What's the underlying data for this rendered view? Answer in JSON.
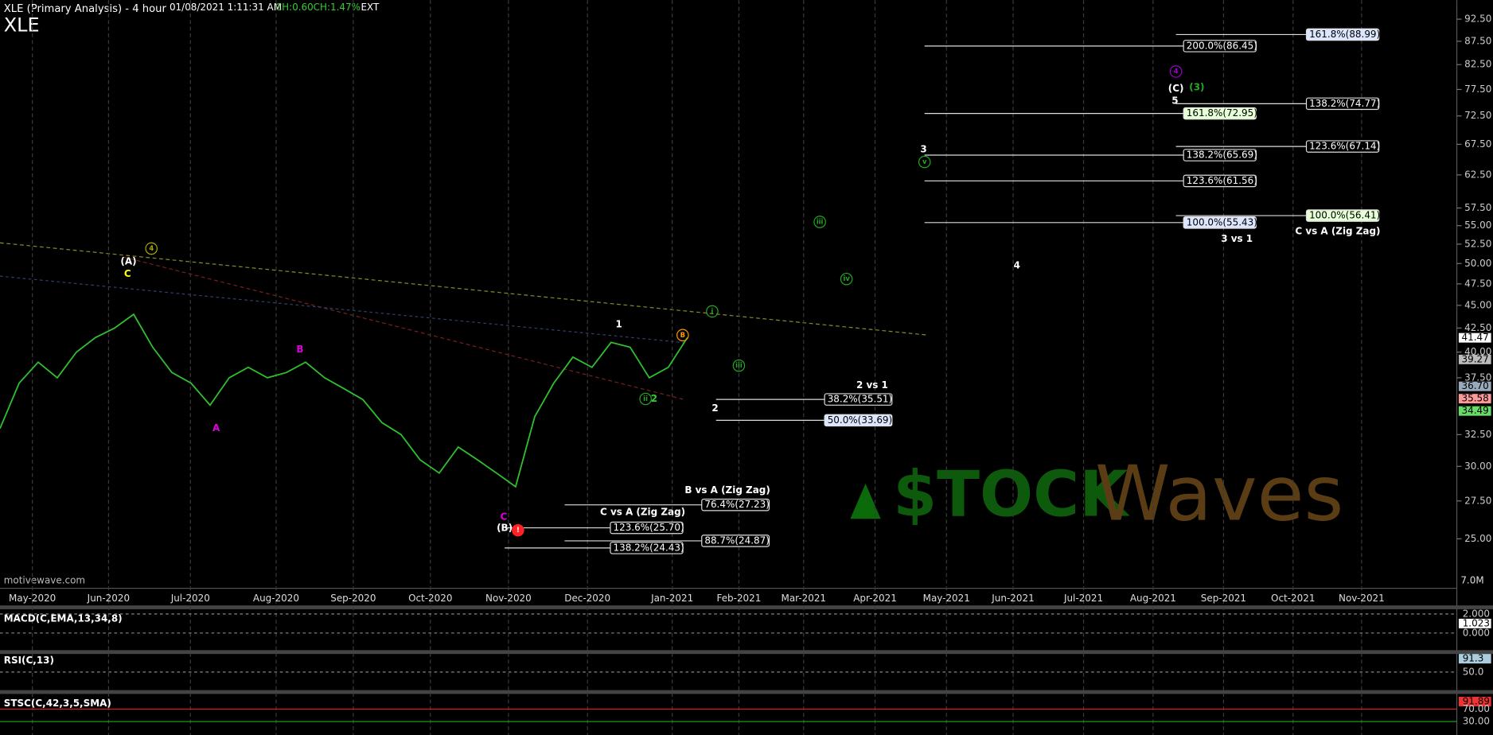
{
  "header": {
    "title": "XLE (Primary Analysis) - 4 hour",
    "symbol": "XLE",
    "timestamp": "01/08/2021 1:11:31 AM",
    "change": "CH:0.60",
    "change_pct": "CH:1.47%",
    "session": "EXT"
  },
  "price_axis": {
    "ticks": [
      "92.50",
      "87.50",
      "82.50",
      "77.50",
      "72.50",
      "67.50",
      "62.50",
      "57.50",
      "55.00",
      "52.50",
      "50.00",
      "47.50",
      "45.00",
      "42.50",
      "40.00",
      "37.50",
      "32.50",
      "30.00",
      "27.50",
      "25.00"
    ],
    "markers": [
      "41.47",
      "39.27",
      "36.70",
      "35.58",
      "34.49"
    ]
  },
  "time_axis": [
    "May-2020",
    "Jun-2020",
    "Jul-2020",
    "Aug-2020",
    "Sep-2020",
    "Oct-2020",
    "Nov-2020",
    "Dec-2020",
    "Jan-2021",
    "Feb-2021",
    "Mar-2021",
    "Apr-2021",
    "May-2021",
    "Jun-2021",
    "Jul-2021",
    "Aug-2021",
    "Sep-2021",
    "Oct-2021",
    "Nov-2021"
  ],
  "price_series": {
    "values": [
      33,
      37,
      39,
      37.5,
      40,
      41.5,
      42.5,
      44,
      40.5,
      38,
      37,
      35,
      37.5,
      38.5,
      37.5,
      38,
      39,
      37.5,
      36.5,
      35.5,
      33.5,
      32.5,
      30.5,
      29.5,
      31.5,
      30.5,
      29.5,
      28.5,
      34,
      37,
      39.5,
      38.5,
      41,
      40.5,
      37.5,
      38.5,
      41.5
    ]
  },
  "fib_levels": [
    "161.8%(88.99)",
    "200.0%(86.45)",
    "138.2%(74.77)",
    "161.8%(72.95)",
    "123.6%(67.14)",
    "138.2%(65.69)",
    "123.6%(61.56)",
    "100.0%(56.41)",
    "100.0%(55.43)",
    "38.2%(35.51)",
    "50.0%(33.69)",
    "76.4%(27.23)",
    "123.6%(25.70)",
    "88.7%(24.87)",
    "138.2%(24.43)"
  ],
  "fib_titles": [
    "3 vs 1",
    "C vs A (Zig Zag)",
    "2 vs 1",
    "B vs A (Zig Zag)",
    "C vs A (Zig Zag)"
  ],
  "wave_labels": [
    "(A)",
    "C",
    "4",
    "B",
    "A",
    "C",
    "(B)",
    "!",
    "1",
    "B",
    "ii",
    "2",
    "i",
    "iii",
    "iii",
    "iv",
    "2",
    "3",
    "v",
    "4",
    "4",
    "(C)",
    "(3)",
    "5"
  ],
  "logo": {
    "left": "$TOCK",
    "right": "Waves"
  },
  "footer": {
    "source": "motivewave.com",
    "volume": "7.0M"
  },
  "indicators": [
    {
      "name": "MACD(C,EMA,13,34,8)",
      "ticks": [
        "2.000",
        "1.023",
        "0.000"
      ]
    },
    {
      "name": "RSI(C,13)",
      "ticks": [
        "91.3",
        "50.0"
      ]
    },
    {
      "name": "STSC(C,42,3,5,SMA)",
      "ticks": [
        "91.89",
        "70.00",
        "30.00"
      ]
    }
  ]
}
